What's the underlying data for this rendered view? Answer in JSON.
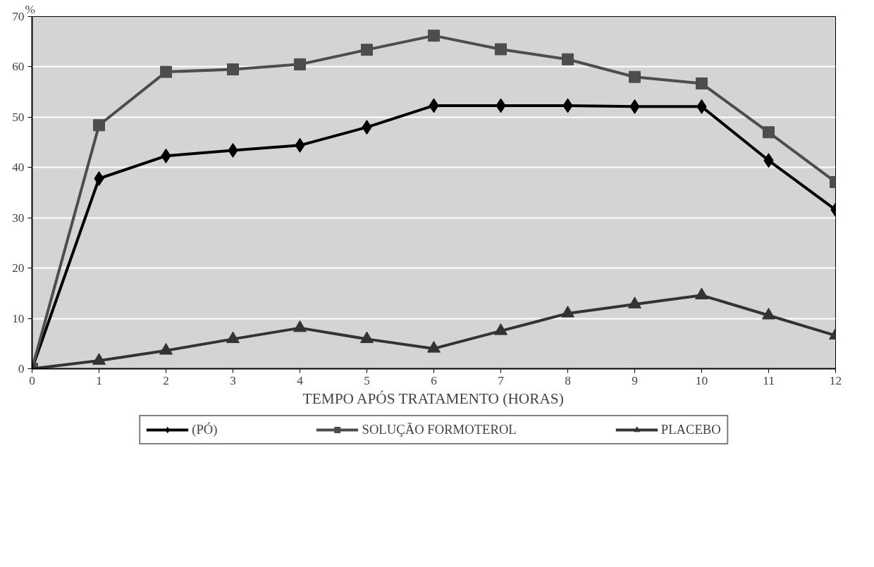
{
  "chart_data": {
    "type": "line",
    "xlabel": "TEMPO APÓS TRATAMENTO (HORAS)",
    "ylabel": "%",
    "x": [
      0,
      1,
      2,
      3,
      4,
      5,
      6,
      7,
      8,
      9,
      10,
      11,
      12
    ],
    "xlim": [
      0,
      12
    ],
    "xticks": [
      0,
      1,
      2,
      3,
      4,
      5,
      6,
      7,
      8,
      9,
      10,
      11,
      12
    ],
    "ylim": [
      0,
      70
    ],
    "yticks": [
      0,
      10,
      20,
      30,
      40,
      50,
      60,
      70
    ],
    "grid": "y",
    "legend": "bottom",
    "line_style": "solid",
    "series": [
      {
        "name": "(PÓ)",
        "color": "#000000",
        "marker": "diamond",
        "values": [
          0,
          37.8,
          42.3,
          43.4,
          44.4,
          48,
          52.3,
          52.3,
          52.3,
          52.1,
          52.1,
          41.4,
          31.6
        ]
      },
      {
        "name": "SOLUÇÃO FORMOTEROL",
        "color": "#4d4d4d",
        "marker": "square",
        "values": [
          0,
          48.4,
          59,
          59.5,
          60.5,
          63.4,
          66.2,
          63.5,
          61.5,
          58,
          56.7,
          47,
          37.1
        ]
      },
      {
        "name": "PLACEBO",
        "color": "#333333",
        "marker": "triangle",
        "values": [
          0,
          1.6,
          3.6,
          5.9,
          8.1,
          5.9,
          4,
          7.5,
          11,
          12.8,
          14.6,
          10.6,
          6.6
        ]
      }
    ]
  }
}
